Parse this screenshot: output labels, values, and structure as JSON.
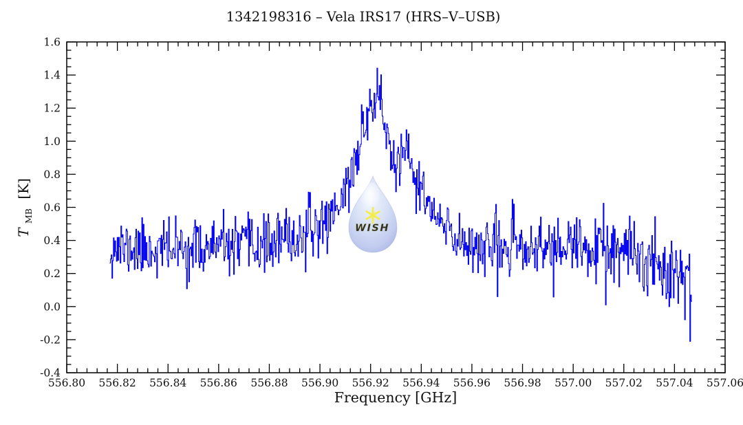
{
  "chart_data": {
    "type": "line",
    "subtype": "histogram-step-spectrum",
    "title": "1342198316 – Vela IRS17 (HRS–V–USB)",
    "xlabel": "Frequency [GHz]",
    "ylabel": "T MB [K]",
    "ylabel_parts": {
      "symbol": "T",
      "subscript": "MB",
      "unit": "[K]"
    },
    "xlim": [
      556.8,
      557.06
    ],
    "ylim": [
      -0.4,
      1.6
    ],
    "x_major_step": 0.02,
    "x_minor_step": 0.004,
    "y_major_step": 0.2,
    "y_minor_step": 0.05,
    "x_tick_labels": [
      "556.80",
      "556.82",
      "556.84",
      "556.86",
      "556.88",
      "556.90",
      "556.92",
      "556.94",
      "556.96",
      "556.98",
      "557.00",
      "557.02",
      "557.04",
      "557.06"
    ],
    "y_tick_labels": [
      "-0.4",
      "-0.2",
      "0.0",
      "0.2",
      "0.4",
      "0.6",
      "0.8",
      "1.0",
      "1.2",
      "1.4",
      "1.6"
    ],
    "line_color": "#0000ee",
    "axis_color": "#000000",
    "grid": "off",
    "legend": "none",
    "data_f_start": 556.8171,
    "data_f_end": 557.0468,
    "n_channels": 780,
    "baseline_level": 0.36,
    "noise_sigma": 0.085,
    "right_edge_noise_sigma": 0.115,
    "peak": {
      "frequency": 556.922,
      "peak_t": 1.39
    },
    "shoulder": {
      "frequency": 556.933,
      "peak_t": 1.0
    },
    "profile": [
      [
        556.8171,
        0.36
      ],
      [
        556.83,
        0.345
      ],
      [
        556.84,
        0.35
      ],
      [
        556.85,
        0.35
      ],
      [
        556.86,
        0.36
      ],
      [
        556.87,
        0.36
      ],
      [
        556.88,
        0.38
      ],
      [
        556.89,
        0.41
      ],
      [
        556.895,
        0.44
      ],
      [
        556.9,
        0.49
      ],
      [
        556.905,
        0.57
      ],
      [
        556.91,
        0.7
      ],
      [
        556.9135,
        0.85
      ],
      [
        556.916,
        1.0
      ],
      [
        556.919,
        1.17
      ],
      [
        556.9215,
        1.28
      ],
      [
        556.9235,
        1.27
      ],
      [
        556.9255,
        1.12
      ],
      [
        556.9275,
        0.95
      ],
      [
        556.929,
        0.86
      ],
      [
        556.9315,
        0.88
      ],
      [
        556.934,
        0.89
      ],
      [
        556.936,
        0.84
      ],
      [
        556.939,
        0.74
      ],
      [
        556.942,
        0.63
      ],
      [
        556.945,
        0.55
      ],
      [
        556.949,
        0.47
      ],
      [
        556.953,
        0.42
      ],
      [
        556.958,
        0.39
      ],
      [
        556.965,
        0.37
      ],
      [
        556.975,
        0.355
      ],
      [
        556.985,
        0.35
      ],
      [
        556.995,
        0.36
      ],
      [
        557.005,
        0.35
      ],
      [
        557.015,
        0.33
      ],
      [
        557.025,
        0.3
      ],
      [
        557.035,
        0.26
      ],
      [
        557.042,
        0.235
      ],
      [
        557.0468,
        0.22
      ]
    ],
    "outliers": [
      [
        556.97,
        0.06
      ],
      [
        557.013,
        0.01
      ],
      [
        557.044,
        -0.08
      ],
      [
        557.0462,
        -0.21
      ]
    ],
    "seed": 11
  },
  "watermark": {
    "label": "WISH",
    "star_icon": "six-point-star",
    "drop_fill_light": "#f3f7ff",
    "drop_fill_mid": "#c8d4f2",
    "drop_fill_edge": "#8e9add",
    "star_color": "#f2ea30",
    "text_color": "#ece23a"
  }
}
